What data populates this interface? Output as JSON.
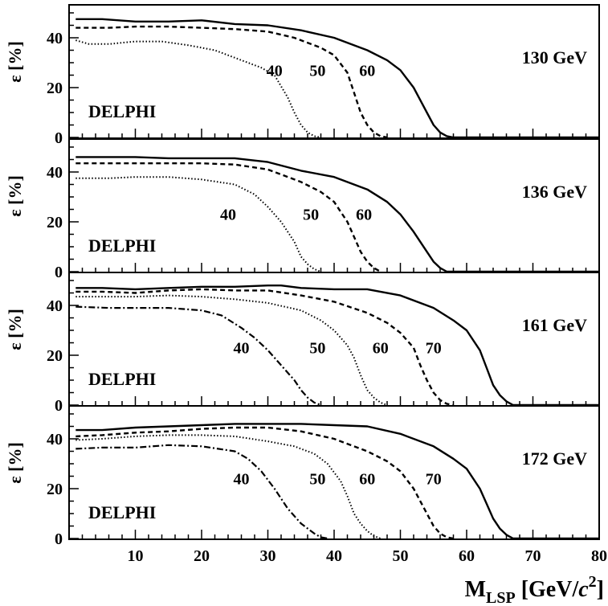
{
  "chart_data": [
    {
      "type": "line",
      "energy_label": "130 GeV",
      "experiment": "DELPHI",
      "ylabel_symbol": "ε",
      "ylabel_unit": "[%]",
      "xlim": [
        0,
        80
      ],
      "ylim": [
        0,
        50
      ],
      "yticks": [
        0,
        20,
        40
      ],
      "series": [
        {
          "name": "40",
          "style": "dotted",
          "label_at": [
            31,
            27
          ],
          "points": [
            [
              1,
              39
            ],
            [
              3,
              37.5
            ],
            [
              6,
              37.5
            ],
            [
              10,
              38.5
            ],
            [
              14,
              38.5
            ],
            [
              18,
              37
            ],
            [
              22,
              35
            ],
            [
              26,
              31
            ],
            [
              29,
              28
            ],
            [
              31,
              25
            ],
            [
              33,
              16
            ],
            [
              34,
              10
            ],
            [
              35,
              5
            ],
            [
              36,
              2
            ],
            [
              37,
              0.5
            ],
            [
              38,
              0
            ]
          ]
        },
        {
          "name": "50",
          "style": "dashed",
          "label_at": [
            37.5,
            27
          ],
          "points": [
            [
              1,
              44
            ],
            [
              6,
              44
            ],
            [
              10,
              44.5
            ],
            [
              15,
              44.5
            ],
            [
              20,
              44
            ],
            [
              25,
              43.5
            ],
            [
              30,
              42.5
            ],
            [
              34,
              40
            ],
            [
              38,
              36
            ],
            [
              40,
              33
            ],
            [
              42,
              26
            ],
            [
              43,
              18
            ],
            [
              44,
              10
            ],
            [
              45,
              5
            ],
            [
              46,
              2
            ],
            [
              47,
              0.5
            ],
            [
              48,
              0
            ]
          ]
        },
        {
          "name": "60",
          "style": "solid",
          "label_at": [
            45,
            27
          ],
          "points": [
            [
              1,
              47.5
            ],
            [
              5,
              47.5
            ],
            [
              10,
              46.5
            ],
            [
              15,
              46.5
            ],
            [
              20,
              47
            ],
            [
              25,
              45.5
            ],
            [
              30,
              45
            ],
            [
              35,
              43
            ],
            [
              40,
              40
            ],
            [
              45,
              35
            ],
            [
              48,
              31
            ],
            [
              50,
              27
            ],
            [
              52,
              20
            ],
            [
              54,
              10
            ],
            [
              55,
              5
            ],
            [
              56,
              2
            ],
            [
              57,
              0.5
            ],
            [
              58,
              0
            ],
            [
              80,
              0
            ]
          ]
        }
      ]
    },
    {
      "type": "line",
      "energy_label": "136 GeV",
      "experiment": "DELPHI",
      "ylabel_symbol": "ε",
      "ylabel_unit": "[%]",
      "xlim": [
        0,
        80
      ],
      "ylim": [
        0,
        50
      ],
      "yticks": [
        0,
        20,
        40
      ],
      "series": [
        {
          "name": "40",
          "style": "dotted",
          "label_at": [
            24,
            23
          ],
          "points": [
            [
              1,
              37.5
            ],
            [
              6,
              37.5
            ],
            [
              10,
              38
            ],
            [
              15,
              38
            ],
            [
              20,
              37
            ],
            [
              25,
              35
            ],
            [
              28,
              31
            ],
            [
              30,
              26
            ],
            [
              32,
              20
            ],
            [
              34,
              12
            ],
            [
              35,
              6
            ],
            [
              36,
              3
            ],
            [
              37,
              1
            ],
            [
              38,
              0
            ]
          ]
        },
        {
          "name": "50",
          "style": "dashed",
          "label_at": [
            36.5,
            23
          ],
          "points": [
            [
              1,
              43.5
            ],
            [
              6,
              43.5
            ],
            [
              10,
              43.5
            ],
            [
              15,
              43.5
            ],
            [
              20,
              43.5
            ],
            [
              25,
              43
            ],
            [
              30,
              41
            ],
            [
              35,
              36
            ],
            [
              38,
              32
            ],
            [
              40,
              28
            ],
            [
              42,
              20
            ],
            [
              43,
              14
            ],
            [
              44,
              8
            ],
            [
              45,
              4
            ],
            [
              46,
              1.5
            ],
            [
              47,
              0
            ]
          ]
        },
        {
          "name": "60",
          "style": "solid",
          "label_at": [
            44.5,
            23
          ],
          "points": [
            [
              1,
              46
            ],
            [
              5,
              46
            ],
            [
              10,
              46
            ],
            [
              15,
              45.5
            ],
            [
              20,
              45.5
            ],
            [
              25,
              45.5
            ],
            [
              30,
              44
            ],
            [
              35,
              40.5
            ],
            [
              40,
              38
            ],
            [
              45,
              33
            ],
            [
              48,
              28
            ],
            [
              50,
              23
            ],
            [
              52,
              16
            ],
            [
              54,
              8
            ],
            [
              55,
              4
            ],
            [
              56,
              1.5
            ],
            [
              57,
              0
            ],
            [
              80,
              0
            ]
          ]
        }
      ]
    },
    {
      "type": "line",
      "energy_label": "161 GeV",
      "experiment": "DELPHI",
      "ylabel_symbol": "ε",
      "ylabel_unit": "[%]",
      "xlim": [
        0,
        80
      ],
      "ylim": [
        0,
        50
      ],
      "yticks": [
        0,
        20,
        40
      ],
      "series": [
        {
          "name": "40",
          "style": "dashdot",
          "label_at": [
            26,
            23
          ],
          "points": [
            [
              1,
              39.5
            ],
            [
              6,
              39
            ],
            [
              10,
              39
            ],
            [
              15,
              39
            ],
            [
              20,
              38
            ],
            [
              23,
              36
            ],
            [
              26,
              31
            ],
            [
              28,
              27
            ],
            [
              30,
              22
            ],
            [
              32,
              16
            ],
            [
              34,
              10
            ],
            [
              35,
              6
            ],
            [
              36,
              3
            ],
            [
              37,
              1
            ],
            [
              38,
              0
            ]
          ]
        },
        {
          "name": "50",
          "style": "dotted",
          "label_at": [
            37.5,
            23
          ],
          "points": [
            [
              1,
              43.5
            ],
            [
              5,
              43.5
            ],
            [
              10,
              43.5
            ],
            [
              15,
              44
            ],
            [
              20,
              43.5
            ],
            [
              25,
              42.5
            ],
            [
              30,
              41
            ],
            [
              35,
              38
            ],
            [
              38,
              34
            ],
            [
              40,
              30
            ],
            [
              42,
              24
            ],
            [
              43,
              19
            ],
            [
              44,
              12
            ],
            [
              45,
              6
            ],
            [
              46,
              3
            ],
            [
              47,
              1
            ],
            [
              48,
              0
            ]
          ]
        },
        {
          "name": "60",
          "style": "dashed",
          "label_at": [
            47,
            23
          ],
          "points": [
            [
              1,
              45.5
            ],
            [
              5,
              45.5
            ],
            [
              10,
              45
            ],
            [
              15,
              46
            ],
            [
              20,
              46.5
            ],
            [
              25,
              46
            ],
            [
              30,
              46
            ],
            [
              35,
              44
            ],
            [
              40,
              41.5
            ],
            [
              45,
              37
            ],
            [
              48,
              33
            ],
            [
              50,
              29
            ],
            [
              52,
              23
            ],
            [
              53,
              16
            ],
            [
              54,
              10
            ],
            [
              55,
              5
            ],
            [
              56,
              2
            ],
            [
              57,
              0.5
            ],
            [
              58,
              0
            ]
          ]
        },
        {
          "name": "70",
          "style": "solid",
          "label_at": [
            55,
            23
          ],
          "points": [
            [
              1,
              47
            ],
            [
              5,
              47
            ],
            [
              10,
              46.5
            ],
            [
              15,
              47
            ],
            [
              20,
              47.5
            ],
            [
              25,
              47.5
            ],
            [
              30,
              48
            ],
            [
              32,
              48
            ],
            [
              35,
              47
            ],
            [
              40,
              46.5
            ],
            [
              45,
              46.5
            ],
            [
              50,
              44
            ],
            [
              55,
              39
            ],
            [
              58,
              34
            ],
            [
              60,
              30
            ],
            [
              62,
              22
            ],
            [
              63,
              15
            ],
            [
              64,
              8
            ],
            [
              65,
              4
            ],
            [
              66,
              1.5
            ],
            [
              67,
              0
            ],
            [
              80,
              0
            ]
          ]
        }
      ]
    },
    {
      "type": "line",
      "energy_label": "172 GeV",
      "experiment": "DELPHI",
      "ylabel_symbol": "ε",
      "ylabel_unit": "[%]",
      "xlim": [
        0,
        80
      ],
      "ylim": [
        0,
        50
      ],
      "yticks": [
        0,
        20,
        40
      ],
      "series": [
        {
          "name": "40",
          "style": "dashdot",
          "label_at": [
            26,
            24
          ],
          "points": [
            [
              1,
              36
            ],
            [
              5,
              36.5
            ],
            [
              10,
              36.5
            ],
            [
              15,
              37.5
            ],
            [
              20,
              37
            ],
            [
              25,
              35
            ],
            [
              27,
              32
            ],
            [
              29,
              27
            ],
            [
              31,
              20
            ],
            [
              33,
              12
            ],
            [
              35,
              6
            ],
            [
              37,
              2
            ],
            [
              38,
              0.5
            ],
            [
              39,
              0
            ]
          ]
        },
        {
          "name": "50",
          "style": "dotted",
          "label_at": [
            37.5,
            24
          ],
          "points": [
            [
              1,
              39.5
            ],
            [
              5,
              40
            ],
            [
              10,
              41
            ],
            [
              15,
              41.5
            ],
            [
              20,
              41.5
            ],
            [
              25,
              41
            ],
            [
              30,
              39
            ],
            [
              34,
              37
            ],
            [
              37,
              34
            ],
            [
              39,
              30
            ],
            [
              41,
              23
            ],
            [
              42,
              17
            ],
            [
              43,
              10
            ],
            [
              44,
              6
            ],
            [
              45,
              3
            ],
            [
              46,
              1
            ],
            [
              47,
              0
            ]
          ]
        },
        {
          "name": "60",
          "style": "dashed",
          "label_at": [
            45,
            24
          ],
          "points": [
            [
              1,
              41
            ],
            [
              5,
              41.5
            ],
            [
              10,
              42.5
            ],
            [
              15,
              43
            ],
            [
              20,
              44
            ],
            [
              25,
              44.5
            ],
            [
              30,
              44.5
            ],
            [
              35,
              43
            ],
            [
              40,
              40
            ],
            [
              45,
              35
            ],
            [
              48,
              31
            ],
            [
              50,
              27
            ],
            [
              52,
              20
            ],
            [
              54,
              10
            ],
            [
              55,
              5
            ],
            [
              56,
              2
            ],
            [
              57,
              0.5
            ],
            [
              58,
              0
            ]
          ]
        },
        {
          "name": "70",
          "style": "solid",
          "label_at": [
            55,
            24
          ],
          "points": [
            [
              1,
              43.5
            ],
            [
              5,
              43.5
            ],
            [
              10,
              44.5
            ],
            [
              15,
              45
            ],
            [
              20,
              45.5
            ],
            [
              25,
              46
            ],
            [
              30,
              46
            ],
            [
              35,
              46
            ],
            [
              40,
              45.5
            ],
            [
              45,
              45
            ],
            [
              50,
              42
            ],
            [
              55,
              37
            ],
            [
              58,
              32
            ],
            [
              60,
              28
            ],
            [
              62,
              20
            ],
            [
              63,
              14
            ],
            [
              64,
              8
            ],
            [
              65,
              4
            ],
            [
              66,
              1.5
            ],
            [
              67,
              0
            ],
            [
              80,
              0
            ]
          ]
        }
      ]
    }
  ],
  "xaxis": {
    "ticks": [
      10,
      20,
      30,
      40,
      50,
      60,
      70,
      80
    ],
    "label_main": "M",
    "label_sub": "LSP",
    "label_rest": " [GeV/",
    "label_c": "c",
    "label_sup": "2",
    "label_end": "]"
  }
}
